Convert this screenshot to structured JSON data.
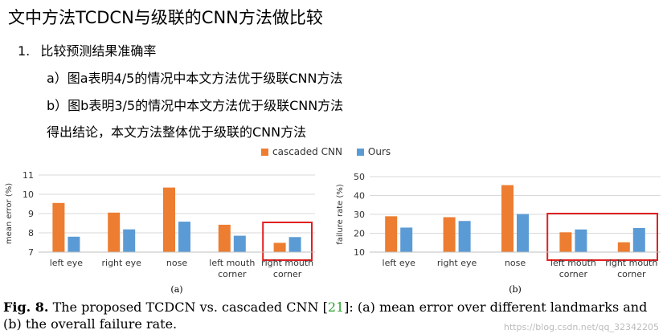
{
  "heading": "文中方法TCDCN与级联的CNN方法做比较",
  "section": {
    "num": "1.",
    "title": "比较预测结果准确率",
    "lines": [
      "a）图a表明4/5的情况中本文方法优于级联CNN方法",
      "b）图b表明3/5的情况中本文方法优于级联CNN方法",
      "得出结论，本文方法整体优于级联的CNN方法"
    ]
  },
  "legend": [
    {
      "label": "cascaded CNN",
      "color": "#ed7d31"
    },
    {
      "label": "Ours",
      "color": "#5b9bd5"
    }
  ],
  "chart_data": [
    {
      "type": "bar",
      "sublabel": "(a)",
      "ylabel": "mean error (%)",
      "ylim": [
        7,
        11
      ],
      "yticks": [
        7,
        8,
        9,
        10,
        11
      ],
      "categories": [
        [
          "left eye"
        ],
        [
          "right eye"
        ],
        [
          "nose"
        ],
        [
          "left mouth",
          "corner"
        ],
        [
          "right mouth",
          "corner"
        ]
      ],
      "series": [
        {
          "name": "cascaded CNN",
          "color": "#ed7d31",
          "values": [
            9.55,
            9.05,
            10.35,
            8.42,
            7.48
          ]
        },
        {
          "name": "Ours",
          "color": "#5b9bd5",
          "values": [
            7.8,
            8.18,
            8.58,
            7.85,
            7.78
          ]
        }
      ],
      "grid": true,
      "highlight": {
        "from": 4,
        "to": 4,
        "color": "#e02020"
      }
    },
    {
      "type": "bar",
      "sublabel": "(b)",
      "ylabel": "failure rate (%)",
      "ylim": [
        10,
        50
      ],
      "yticks": [
        10,
        20,
        30,
        40,
        50
      ],
      "categories": [
        [
          "left eye"
        ],
        [
          "right eye"
        ],
        [
          "nose"
        ],
        [
          "left mouth",
          "corner"
        ],
        [
          "right mouth",
          "corner"
        ]
      ],
      "series": [
        {
          "name": "cascaded CNN",
          "color": "#ed7d31",
          "values": [
            29,
            28.5,
            45.5,
            20.5,
            15.2
          ]
        },
        {
          "name": "Ours",
          "color": "#5b9bd5",
          "values": [
            23,
            26.5,
            30.2,
            22,
            22.8
          ]
        }
      ],
      "grid": true,
      "highlight": {
        "from": 3,
        "to": 4,
        "color": "#e02020"
      }
    }
  ],
  "caption": {
    "label": "Fig. 8.",
    "text1": "The proposed TCDCN vs. cascaded CNN [",
    "ref": "21",
    "text2": "]: (a) mean error over different landmarks and (b) the overall failure rate."
  },
  "watermark": "https://blog.csdn.net/qq_32342205"
}
